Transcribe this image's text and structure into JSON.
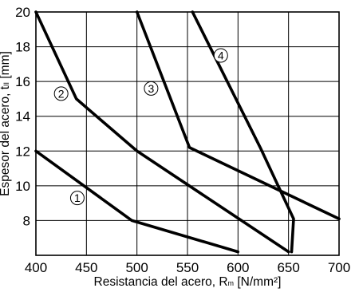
{
  "chart_data": {
    "type": "line",
    "title": "",
    "xlabel": {
      "main": "Resistancia del acero, R",
      "sub": "m",
      "unit": " [N/mm²]"
    },
    "ylabel": {
      "main": "Espesor del acero, t",
      "sub": "II",
      "unit": " [mm]"
    },
    "xlim": [
      400,
      700
    ],
    "ylim": [
      6,
      20
    ],
    "xticks": [
      400,
      450,
      500,
      550,
      600,
      650,
      700
    ],
    "yticks": [
      8,
      10,
      12,
      14,
      16,
      18,
      20
    ],
    "grid": true,
    "series": [
      {
        "marker": "1",
        "points": [
          [
            400,
            12
          ],
          [
            495,
            8
          ],
          [
            600,
            6.2
          ]
        ],
        "marker_at": [
          441,
          9.3
        ]
      },
      {
        "marker": "2",
        "points": [
          [
            400,
            20
          ],
          [
            440,
            15
          ],
          [
            500,
            12
          ],
          [
            650,
            6.2
          ]
        ],
        "marker_at": [
          425,
          15.3
        ]
      },
      {
        "marker": "3",
        "points": [
          [
            500,
            20
          ],
          [
            552,
            12.2
          ],
          [
            700,
            8.1
          ]
        ],
        "marker_at": [
          514,
          15.6
        ]
      },
      {
        "marker": "4",
        "points": [
          [
            555,
            20
          ],
          [
            622,
            12.2
          ],
          [
            655,
            8.1
          ],
          [
            653,
            6.2
          ]
        ],
        "marker_at": [
          583,
          17.5
        ]
      }
    ]
  }
}
